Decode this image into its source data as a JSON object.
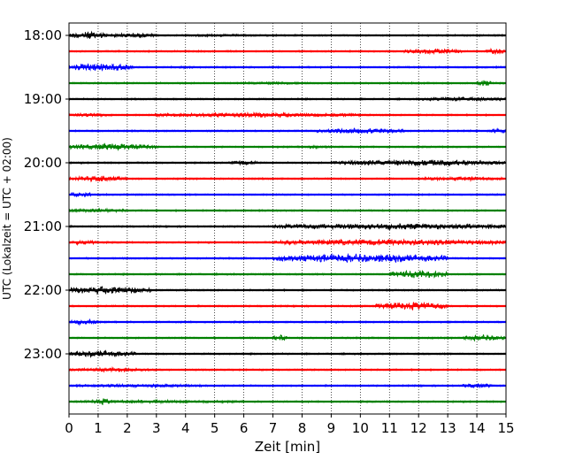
{
  "chart_data": {
    "type": "line",
    "subtype": "helicorder",
    "xlabel": "Zeit  [min]",
    "ylabel": "UTC (Lokalzeit = UTC + 02:00)",
    "xlim": [
      0,
      15
    ],
    "x_ticks": [
      "0",
      "1",
      "2",
      "3",
      "4",
      "5",
      "6",
      "7",
      "8",
      "9",
      "10",
      "11",
      "12",
      "13",
      "14",
      "15"
    ],
    "y_ticks": [
      {
        "label": "18:00",
        "row": 0
      },
      {
        "label": "19:00",
        "row": 4
      },
      {
        "label": "20:00",
        "row": 8
      },
      {
        "label": "21:00",
        "row": 12
      },
      {
        "label": "22:00",
        "row": 16
      },
      {
        "label": "23:00",
        "row": 20
      }
    ],
    "grid": "vertical dotted at every minute",
    "colors": [
      "#000000",
      "#ff0000",
      "#0000ff",
      "#008000"
    ],
    "rows_per_hour": 4,
    "minutes_per_row": 15,
    "traces": [
      {
        "start": "18:00",
        "color": "#000000",
        "bursts": [
          [
            0,
            1.3,
            5
          ],
          [
            1.3,
            3.0,
            3
          ],
          [
            3.0,
            7.5,
            1.5
          ]
        ]
      },
      {
        "start": "18:15",
        "color": "#ff0000",
        "bursts": [
          [
            11.5,
            13.5,
            3.5
          ],
          [
            14.3,
            15,
            3.5
          ]
        ]
      },
      {
        "start": "18:30",
        "color": "#0000ff",
        "bursts": [
          [
            0,
            2.2,
            5
          ],
          [
            3.5,
            4.5,
            1.5
          ]
        ]
      },
      {
        "start": "18:45",
        "color": "#008000",
        "bursts": [
          [
            14.0,
            14.5,
            4
          ],
          [
            6.0,
            8.0,
            2
          ]
        ]
      },
      {
        "start": "19:00",
        "color": "#000000",
        "bursts": [
          [
            12.0,
            15,
            2.5
          ]
        ]
      },
      {
        "start": "19:15",
        "color": "#ff0000",
        "bursts": [
          [
            0,
            1.5,
            2.5
          ],
          [
            2.9,
            10,
            3
          ]
        ]
      },
      {
        "start": "19:30",
        "color": "#0000ff",
        "bursts": [
          [
            8.5,
            11.5,
            3.5
          ],
          [
            14.5,
            15,
            4
          ]
        ]
      },
      {
        "start": "19:45",
        "color": "#008000",
        "bursts": [
          [
            0,
            3.0,
            4
          ],
          [
            8.0,
            9.0,
            2
          ]
        ]
      },
      {
        "start": "20:00",
        "color": "#000000",
        "bursts": [
          [
            5.5,
            6.5,
            3
          ],
          [
            9.0,
            15,
            4
          ]
        ]
      },
      {
        "start": "20:15",
        "color": "#ff0000",
        "bursts": [
          [
            0,
            2.0,
            3.5
          ],
          [
            12.0,
            15,
            2.5
          ]
        ]
      },
      {
        "start": "20:30",
        "color": "#0000ff",
        "bursts": [
          [
            0,
            0.8,
            3
          ]
        ]
      },
      {
        "start": "20:45",
        "color": "#008000",
        "bursts": [
          [
            0,
            2.0,
            2.5
          ]
        ]
      },
      {
        "start": "21:00",
        "color": "#000000",
        "bursts": [
          [
            7.0,
            15,
            4
          ]
        ]
      },
      {
        "start": "21:15",
        "color": "#ff0000",
        "bursts": [
          [
            0,
            1.0,
            3
          ],
          [
            7.0,
            15,
            4
          ]
        ]
      },
      {
        "start": "21:30",
        "color": "#0000ff",
        "bursts": [
          [
            7.0,
            13.0,
            5.5
          ]
        ]
      },
      {
        "start": "21:45",
        "color": "#008000",
        "bursts": [
          [
            11.0,
            13.0,
            5
          ]
        ]
      },
      {
        "start": "22:00",
        "color": "#000000",
        "bursts": [
          [
            0,
            2.8,
            5
          ]
        ]
      },
      {
        "start": "22:15",
        "color": "#ff0000",
        "bursts": [
          [
            10.5,
            13.0,
            5
          ]
        ]
      },
      {
        "start": "22:30",
        "color": "#0000ff",
        "bursts": [
          [
            0,
            1.0,
            3.5
          ]
        ]
      },
      {
        "start": "22:45",
        "color": "#008000",
        "bursts": [
          [
            7.0,
            7.5,
            4
          ],
          [
            13.5,
            15,
            4
          ]
        ]
      },
      {
        "start": "23:00",
        "color": "#000000",
        "bursts": [
          [
            0,
            2.3,
            4
          ]
        ]
      },
      {
        "start": "23:15",
        "color": "#ff0000",
        "bursts": [
          [
            0,
            3.0,
            2.5
          ]
        ]
      },
      {
        "start": "23:30",
        "color": "#0000ff",
        "bursts": [
          [
            0,
            5.0,
            2
          ],
          [
            13.5,
            14.5,
            3
          ]
        ]
      },
      {
        "start": "23:45",
        "color": "#008000",
        "bursts": [
          [
            0.8,
            1.5,
            4
          ],
          [
            0,
            6.0,
            2
          ]
        ]
      }
    ]
  }
}
